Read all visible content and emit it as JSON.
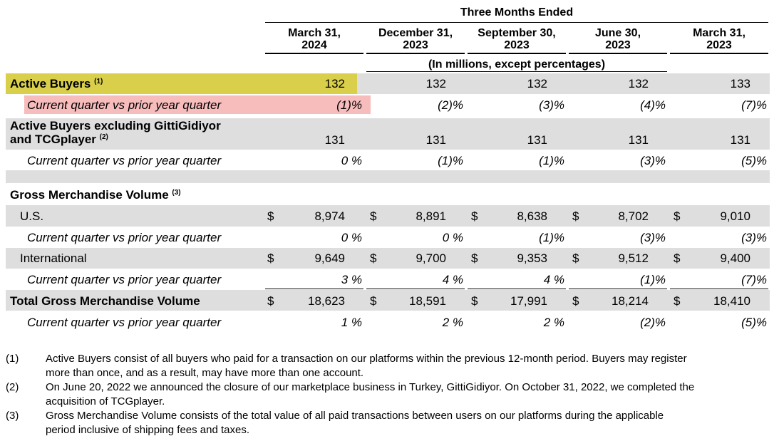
{
  "header": {
    "group_title": "Three Months Ended",
    "columns": [
      {
        "line1": "March 31,",
        "line2": "2024"
      },
      {
        "line1": "December 31,",
        "line2": "2023"
      },
      {
        "line1": "September 30,",
        "line2": "2023"
      },
      {
        "line1": "June 30,",
        "line2": "2023"
      },
      {
        "line1": "March 31,",
        "line2": "2023"
      }
    ],
    "units_note": "(In millions, except percentages)"
  },
  "rows": {
    "active_buyers": {
      "label": "Active Buyers",
      "note": "(1)",
      "values": [
        "132",
        "132",
        "132",
        "132",
        "133"
      ]
    },
    "active_buyers_yoy": {
      "label": "Current quarter vs prior year quarter",
      "values": [
        "(1)%",
        "(2)%",
        "(3)%",
        "(4)%",
        "(7)%"
      ]
    },
    "active_buyers_excl": {
      "label_line1": "Active Buyers excluding GittiGidiyor",
      "label_line2": "and TCGplayer",
      "note": "(2)",
      "values": [
        "131",
        "131",
        "131",
        "131",
        "131"
      ]
    },
    "active_buyers_excl_yoy": {
      "label": "Current quarter vs prior year quarter",
      "values": [
        "0 %",
        "(1)%",
        "(1)%",
        "(3)%",
        "(5)%"
      ]
    },
    "gmv_heading": {
      "label": "Gross Merchandise Volume",
      "note": "(3)"
    },
    "us": {
      "label": "U.S.",
      "currency": "$",
      "values": [
        "8,974",
        "8,891",
        "8,638",
        "8,702",
        "9,010"
      ]
    },
    "us_yoy": {
      "label": "Current quarter vs prior year quarter",
      "values": [
        "0 %",
        "0 %",
        "(1)%",
        "(3)%",
        "(3)%"
      ]
    },
    "intl": {
      "label": "International",
      "currency": "$",
      "values": [
        "9,649",
        "9,700",
        "9,353",
        "9,512",
        "9,400"
      ]
    },
    "intl_yoy": {
      "label": "Current quarter vs prior year quarter",
      "values": [
        "3 %",
        "4 %",
        "4 %",
        "(1)%",
        "(7)%"
      ]
    },
    "total": {
      "label": "Total Gross Merchandise Volume",
      "currency": "$",
      "values": [
        "18,623",
        "18,591",
        "17,991",
        "18,214",
        "18,410"
      ]
    },
    "total_yoy": {
      "label": "Current quarter vs prior year quarter",
      "values": [
        "1 %",
        "2 %",
        "2 %",
        "(2)%",
        "(5)%"
      ]
    }
  },
  "footnotes": [
    {
      "num": "(1)",
      "line1": "Active Buyers consist of all buyers who paid for a transaction on our platforms within the previous 12-month period. Buyers may register",
      "line2": "more than once, and as a result, may have more than one account."
    },
    {
      "num": "(2)",
      "line1": "On June 20, 2022 we announced the closure of our marketplace business in Turkey, GittiGidiyor. On October 31, 2022, we completed the",
      "line2": "acquisition of TCGplayer."
    },
    {
      "num": "(3)",
      "line1": "Gross Merchandise Volume consists of the total value of all paid transactions between users on our platforms during the applicable",
      "line2": "period inclusive of shipping fees and taxes."
    }
  ],
  "colors": {
    "row_shade": "#dedede",
    "highlight_yellow": "#d9cf4a",
    "highlight_pink": "#f7bcbc"
  }
}
